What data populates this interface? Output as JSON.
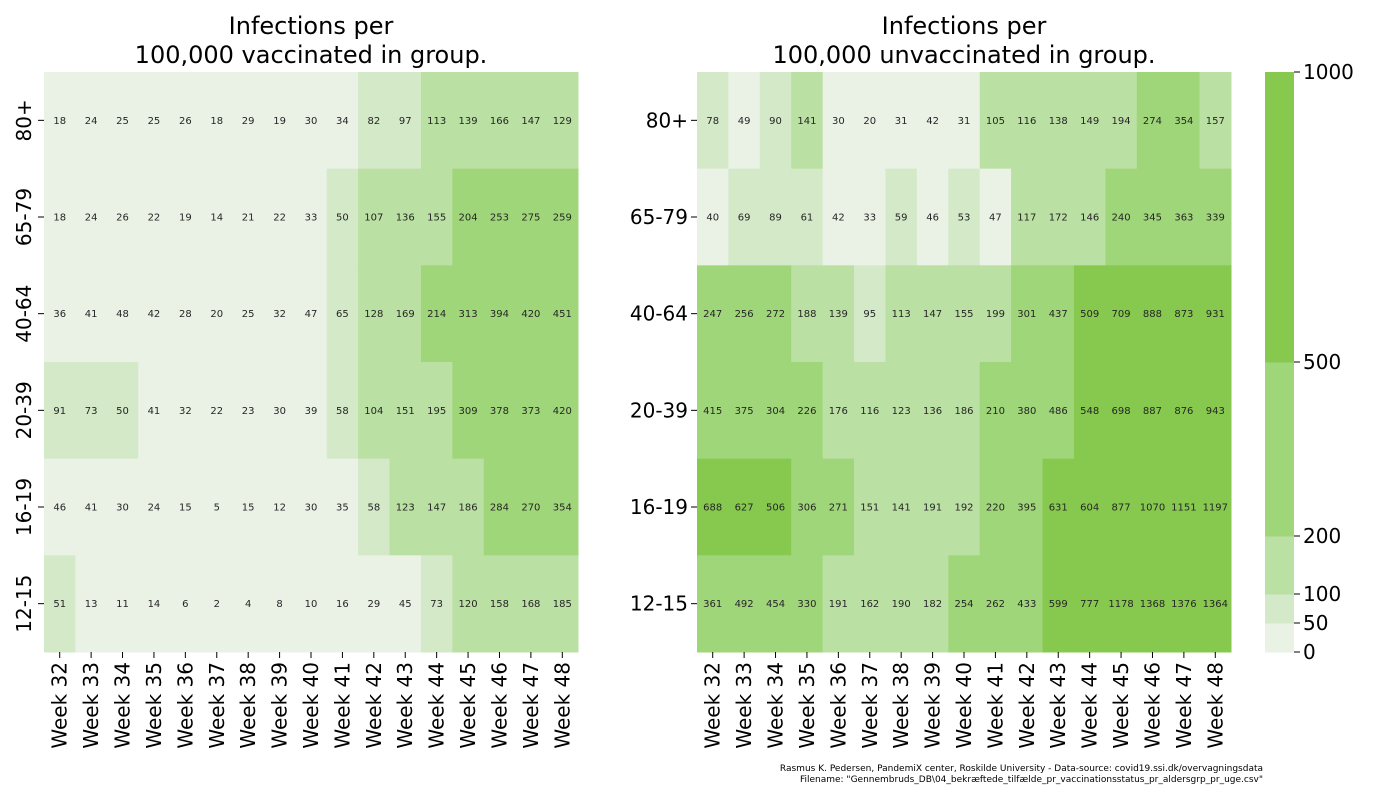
{
  "chart_data": [
    {
      "type": "heatmap",
      "title": "Infections per\n100,000 vaccinated in group.",
      "x_categories": [
        "Week 32",
        "Week 33",
        "Week 34",
        "Week 35",
        "Week 36",
        "Week 37",
        "Week 38",
        "Week 39",
        "Week 40",
        "Week 41",
        "Week 42",
        "Week 43",
        "Week 44",
        "Week 45",
        "Week 46",
        "Week 47",
        "Week 48"
      ],
      "y_categories": [
        "80+",
        "65-79",
        "40-64",
        "20-39",
        "16-19",
        "12-15"
      ],
      "values": [
        [
          18,
          24,
          25,
          25,
          26,
          18,
          29,
          19,
          30,
          34,
          82,
          97,
          113,
          139,
          166,
          147,
          129
        ],
        [
          18,
          24,
          26,
          22,
          19,
          14,
          21,
          22,
          33,
          50,
          107,
          136,
          155,
          204,
          253,
          275,
          259
        ],
        [
          36,
          41,
          48,
          42,
          28,
          20,
          25,
          32,
          47,
          65,
          128,
          169,
          214,
          313,
          394,
          420,
          451
        ],
        [
          91,
          73,
          50,
          41,
          32,
          22,
          23,
          30,
          39,
          58,
          104,
          151,
          195,
          309,
          378,
          373,
          420
        ],
        [
          46,
          41,
          30,
          24,
          15,
          5,
          15,
          12,
          30,
          35,
          58,
          123,
          147,
          186,
          284,
          270,
          354
        ],
        [
          51,
          13,
          11,
          14,
          6,
          2,
          4,
          8,
          10,
          16,
          29,
          45,
          73,
          120,
          158,
          168,
          185
        ]
      ]
    },
    {
      "type": "heatmap",
      "title": "Infections per\n100,000 unvaccinated in group.",
      "x_categories": [
        "Week 32",
        "Week 33",
        "Week 34",
        "Week 35",
        "Week 36",
        "Week 37",
        "Week 38",
        "Week 39",
        "Week 40",
        "Week 41",
        "Week 42",
        "Week 43",
        "Week 44",
        "Week 45",
        "Week 46",
        "Week 47",
        "Week 48"
      ],
      "y_categories": [
        "80+",
        "65-79",
        "40-64",
        "20-39",
        "16-19",
        "12-15"
      ],
      "values": [
        [
          78,
          49,
          90,
          141,
          30,
          20,
          31,
          42,
          31,
          105,
          116,
          138,
          149,
          194,
          274,
          354,
          157
        ],
        [
          40,
          69,
          89,
          61,
          42,
          33,
          59,
          46,
          53,
          47,
          117,
          172,
          146,
          240,
          345,
          363,
          339
        ],
        [
          247,
          256,
          272,
          188,
          139,
          95,
          113,
          147,
          155,
          199,
          301,
          437,
          509,
          709,
          888,
          873,
          931
        ],
        [
          415,
          375,
          304,
          226,
          176,
          116,
          123,
          136,
          186,
          210,
          380,
          486,
          548,
          698,
          887,
          876,
          943
        ],
        [
          688,
          627,
          506,
          306,
          271,
          151,
          141,
          191,
          192,
          220,
          395,
          631,
          604,
          877,
          1070,
          1151,
          1197
        ],
        [
          361,
          492,
          454,
          330,
          191,
          162,
          190,
          182,
          254,
          262,
          433,
          599,
          777,
          1178,
          1368,
          1376,
          1364
        ]
      ]
    }
  ],
  "colorbar": {
    "bounds": [
      0,
      50,
      100,
      200,
      500,
      1000
    ],
    "tick_labels": [
      "0",
      "50",
      "100",
      "200",
      "500",
      "1000"
    ],
    "colors": [
      "#eaf2e6",
      "#d3e9c8",
      "#bbe0a3",
      "#a0d67a",
      "#87c94f"
    ]
  },
  "credit": {
    "line1": "Rasmus K. Pedersen, PandemiX center, Roskilde University - Data-source: covid19.ssi.dk/overvagningsdata",
    "line2": "Filename: \"Gennembruds_DB\\04_bekræftede_tilfælde_pr_vaccinationsstatus_pr_aldersgrp_pr_uge.csv\""
  }
}
